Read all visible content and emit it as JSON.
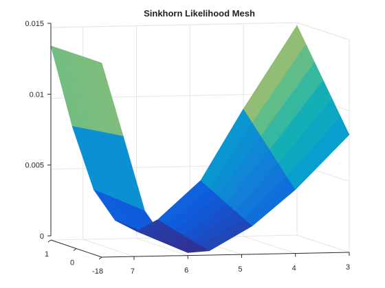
{
  "chart_data": {
    "type": "surface",
    "title": "Sinkhorn Likelihood Mesh",
    "xlabel": "",
    "ylabel": "",
    "zlabel": "",
    "zlim": [
      0,
      0.015
    ],
    "z_ticks": [
      "0",
      "0.005",
      "0.01",
      "0.015"
    ],
    "front_axis_ticks": [
      "7",
      "6",
      "5",
      "4",
      "3"
    ],
    "side_axis_ticks": [
      "1",
      "0",
      "-18"
    ],
    "colormap": "parula",
    "grid": true,
    "series": [
      {
        "name": "",
        "front_edge_z": [
          0.0137,
          0.0085,
          0.0032,
          0.001,
          0.0002,
          0.0003,
          0.002,
          0.0045,
          0.0083
        ],
        "back_edge_z": [
          0.0137,
          0.008,
          0.0035,
          0.0013,
          0.0005,
          0.0013,
          0.004,
          0.009,
          0.0148
        ],
        "front_edge_v": [
          7.6,
          7.2,
          6.8,
          6.4,
          6.0,
          5.6,
          4.8,
          4.0,
          3.0
        ],
        "back_edge_v": [
          7.6,
          7.2,
          6.8,
          6.4,
          6.0,
          5.6,
          4.8,
          4.0,
          3.0
        ]
      }
    ]
  }
}
